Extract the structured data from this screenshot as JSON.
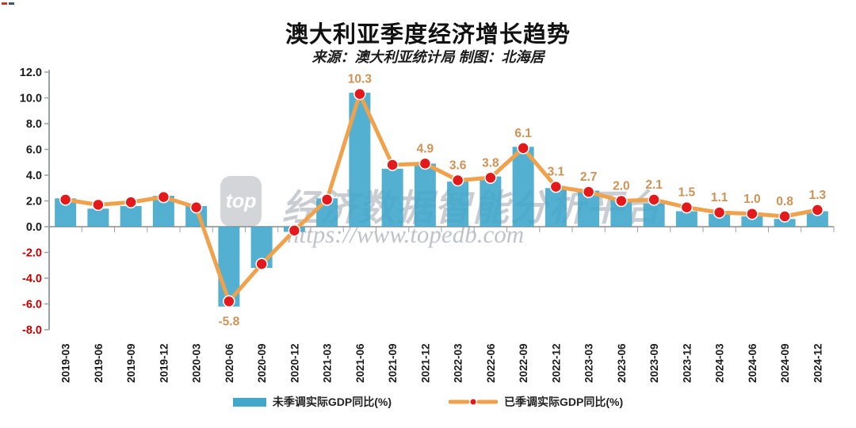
{
  "watermark": {
    "logo_text": "top",
    "brand_text": "经济数据智能分析平台",
    "url_text": "https://www.topedb.com"
  },
  "chart_data": {
    "type": "bar+line",
    "title": "澳大利亚季度经济增长趋势",
    "subtitle": "来源：澳大利亚统计局 制图：北海居",
    "categories": [
      "2019-03",
      "2019-06",
      "2019-09",
      "2019-12",
      "2020-03",
      "2020-06",
      "2020-09",
      "2020-12",
      "2021-03",
      "2021-06",
      "2021-09",
      "2021-12",
      "2022-03",
      "2022-06",
      "2022-09",
      "2022-12",
      "2023-03",
      "2023-06",
      "2023-09",
      "2023-12",
      "2024-03",
      "2024-06",
      "2024-09",
      "2024-12"
    ],
    "series": [
      {
        "name": "未季调实际GDP同比(%)",
        "type": "bar",
        "color": "#41A7CB",
        "values": [
          2.2,
          1.4,
          1.6,
          2.4,
          1.6,
          -6.2,
          -3.2,
          -0.4,
          2.2,
          10.4,
          4.5,
          4.9,
          3.5,
          3.9,
          6.2,
          3.0,
          2.8,
          2.1,
          1.8,
          1.2,
          1.0,
          0.8,
          0.6,
          1.2
        ]
      },
      {
        "name": "已季调实际GDP同比(%)",
        "type": "line",
        "color": "#F0A14C",
        "point_color": "#E4191B",
        "values": [
          2.1,
          1.7,
          1.9,
          2.3,
          1.5,
          -5.8,
          -2.9,
          -0.3,
          2.1,
          10.3,
          4.8,
          4.9,
          3.6,
          3.8,
          6.1,
          3.1,
          2.7,
          2.0,
          2.1,
          1.5,
          1.1,
          1.0,
          0.8,
          1.3
        ],
        "point_labels": [
          null,
          null,
          null,
          null,
          null,
          "-5.8",
          null,
          null,
          null,
          "10.3",
          null,
          "4.9",
          "3.6",
          "3.8",
          "6.1",
          "3.1",
          "2.7",
          "2.0",
          "2.1",
          "1.5",
          "1.1",
          "1.0",
          "0.8",
          "1.3"
        ]
      }
    ],
    "ylim": [
      -8,
      12
    ],
    "ytick_step": 2,
    "y_tick_labels": [
      "12.0",
      "10.0",
      "8.0",
      "6.0",
      "4.0",
      "2.0",
      "0.0",
      "-2.0",
      "-4.0",
      "-6.0",
      "-8.0"
    ],
    "grid": false,
    "legend_position": "bottom",
    "axis_color": "#9aa0a6",
    "zero_line_color": "#8c8c8c",
    "positive_tick_color": "#1a1a1a",
    "negative_tick_color": "#c00000",
    "data_label_color": "#cd9356"
  }
}
